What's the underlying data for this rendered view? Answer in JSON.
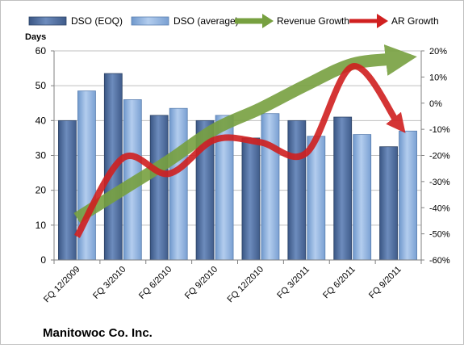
{
  "chart_data": {
    "type": "bar",
    "company_label": "Manitowoc Co. Inc.",
    "y_left_label": "Days",
    "categories": [
      "FQ 12/2009",
      "FQ 3/2010",
      "FQ 6/2010",
      "FQ 9/2010",
      "FQ 12/2010",
      "FQ 3/2011",
      "FQ 6/2011",
      "FQ 9/2011"
    ],
    "series": [
      {
        "name": "DSO (EOQ)",
        "axis": "left",
        "kind": "bar",
        "values": [
          40,
          53.5,
          41.5,
          40,
          35,
          40,
          41,
          32.5
        ]
      },
      {
        "name": "DSO (average)",
        "axis": "left",
        "kind": "bar",
        "values": [
          48.5,
          46,
          43.5,
          41.5,
          42,
          35.5,
          36,
          37
        ]
      },
      {
        "name": "Revenue Growth",
        "axis": "right",
        "kind": "line",
        "values": [
          -44,
          -33,
          -22,
          -10,
          -2,
          7,
          15,
          17
        ]
      },
      {
        "name": "AR Growth",
        "axis": "right",
        "kind": "line",
        "values": [
          -51,
          -21,
          -27,
          -14,
          -15,
          -19,
          14,
          -8
        ]
      }
    ],
    "ylim_left": [
      0,
      60
    ],
    "yticks_left": [
      0,
      10,
      20,
      30,
      40,
      50,
      60
    ],
    "ylim_right": [
      -60,
      20
    ],
    "yticks_right": [
      "-60%",
      "-50%",
      "-40%",
      "-30%",
      "-20%",
      "-10%",
      "0%",
      "10%",
      "20%"
    ],
    "legend_position": "top",
    "colors": {
      "dso_eoq": "#4d6da0",
      "dso_average": "#8eb4e3",
      "revenue_growth": "#77a040",
      "ar_growth": "#d02020",
      "plot_background": "#ffffff",
      "gridline": "#bfbfbf"
    }
  }
}
